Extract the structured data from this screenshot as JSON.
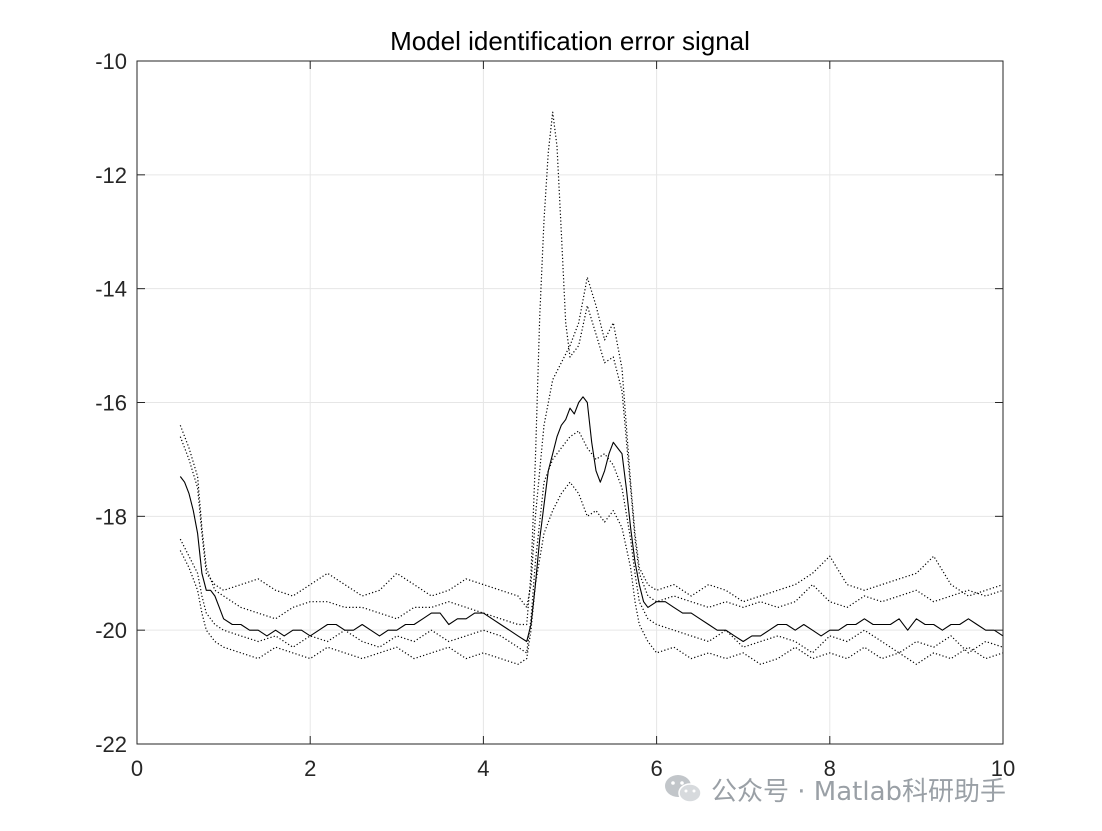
{
  "chart_data": {
    "type": "line",
    "title": "Model identification error signal",
    "xlabel": "",
    "ylabel": "",
    "xlim": [
      0,
      10
    ],
    "ylim": [
      -22,
      -10
    ],
    "xticks": [
      "0",
      "2",
      "4",
      "6",
      "8",
      "10"
    ],
    "yticks": [
      "-10",
      "-12",
      "-14",
      "-16",
      "-18",
      "-20",
      "-22"
    ],
    "grid": true,
    "series": [
      {
        "style": "solid",
        "color": "#000000",
        "x": [
          0.5,
          0.55,
          0.6,
          0.65,
          0.7,
          0.75,
          0.8,
          0.85,
          0.9,
          0.95,
          1.0,
          1.1,
          1.2,
          1.3,
          1.4,
          1.5,
          1.6,
          1.7,
          1.8,
          1.9,
          2.0,
          2.1,
          2.2,
          2.3,
          2.4,
          2.5,
          2.6,
          2.7,
          2.8,
          2.9,
          3.0,
          3.1,
          3.2,
          3.3,
          3.4,
          3.5,
          3.6,
          3.7,
          3.8,
          3.9,
          4.0,
          4.1,
          4.2,
          4.3,
          4.4,
          4.5,
          4.55,
          4.6,
          4.65,
          4.7,
          4.75,
          4.8,
          4.85,
          4.9,
          4.95,
          5.0,
          5.05,
          5.1,
          5.15,
          5.2,
          5.25,
          5.3,
          5.35,
          5.4,
          5.45,
          5.5,
          5.55,
          5.6,
          5.65,
          5.7,
          5.75,
          5.8,
          5.85,
          5.9,
          6.0,
          6.1,
          6.2,
          6.3,
          6.4,
          6.5,
          6.6,
          6.7,
          6.8,
          6.9,
          7.0,
          7.1,
          7.2,
          7.3,
          7.4,
          7.5,
          7.6,
          7.7,
          7.8,
          7.9,
          8.0,
          8.1,
          8.2,
          8.3,
          8.4,
          8.5,
          8.6,
          8.7,
          8.8,
          8.9,
          9.0,
          9.1,
          9.2,
          9.3,
          9.4,
          9.5,
          9.6,
          9.7,
          9.8,
          9.9,
          10.0
        ],
        "y": [
          -17.3,
          -17.4,
          -17.6,
          -17.9,
          -18.3,
          -19.0,
          -19.3,
          -19.3,
          -19.4,
          -19.6,
          -19.8,
          -19.9,
          -19.9,
          -20.0,
          -20.0,
          -20.1,
          -20.0,
          -20.1,
          -20.0,
          -20.0,
          -20.1,
          -20.0,
          -19.9,
          -19.9,
          -20.0,
          -20.0,
          -19.9,
          -20.0,
          -20.1,
          -20.0,
          -20.0,
          -19.9,
          -19.9,
          -19.8,
          -19.7,
          -19.7,
          -19.9,
          -19.8,
          -19.8,
          -19.7,
          -19.7,
          -19.8,
          -19.9,
          -20.0,
          -20.1,
          -20.2,
          -19.9,
          -19.2,
          -18.4,
          -17.8,
          -17.2,
          -16.9,
          -16.6,
          -16.4,
          -16.3,
          -16.1,
          -16.2,
          -16.0,
          -15.9,
          -16.0,
          -16.7,
          -17.2,
          -17.4,
          -17.2,
          -16.9,
          -16.7,
          -16.8,
          -16.9,
          -17.5,
          -18.2,
          -18.8,
          -19.2,
          -19.5,
          -19.6,
          -19.5,
          -19.5,
          -19.6,
          -19.7,
          -19.7,
          -19.8,
          -19.9,
          -20.0,
          -20.0,
          -20.1,
          -20.2,
          -20.1,
          -20.1,
          -20.0,
          -19.9,
          -19.9,
          -20.0,
          -19.9,
          -20.0,
          -20.1,
          -20.0,
          -20.0,
          -19.9,
          -19.9,
          -19.8,
          -19.9,
          -19.9,
          -19.9,
          -19.8,
          -20.0,
          -19.8,
          -19.9,
          -19.9,
          -20.0,
          -19.9,
          -19.9,
          -19.8,
          -19.9,
          -20.0,
          -20.0,
          -20.1
        ]
      },
      {
        "style": "dotted",
        "color": "#000000",
        "x": [
          0.5,
          0.6,
          0.7,
          0.75,
          0.8,
          0.9,
          1.0,
          1.2,
          1.4,
          1.6,
          1.8,
          2.0,
          2.2,
          2.4,
          2.6,
          2.8,
          3.0,
          3.2,
          3.4,
          3.6,
          3.8,
          4.0,
          4.2,
          4.4,
          4.5,
          4.55,
          4.6,
          4.65,
          4.7,
          4.75,
          4.8,
          4.85,
          4.9,
          4.95,
          5.0,
          5.1,
          5.2,
          5.3,
          5.4,
          5.5,
          5.6,
          5.7,
          5.75,
          5.8,
          5.9,
          6.0,
          6.2,
          6.4,
          6.6,
          6.8,
          7.0,
          7.2,
          7.4,
          7.6,
          7.8,
          8.0,
          8.2,
          8.4,
          8.6,
          8.8,
          9.0,
          9.2,
          9.4,
          9.6,
          9.8,
          10.0
        ],
        "y": [
          -16.4,
          -16.8,
          -17.3,
          -18.2,
          -18.9,
          -19.3,
          -19.4,
          -19.6,
          -19.7,
          -19.8,
          -19.6,
          -19.5,
          -19.5,
          -19.6,
          -19.6,
          -19.7,
          -19.8,
          -19.6,
          -19.6,
          -19.5,
          -19.6,
          -19.7,
          -19.8,
          -19.9,
          -19.9,
          -19.0,
          -17.0,
          -14.5,
          -12.8,
          -11.6,
          -10.9,
          -11.5,
          -13.0,
          -14.6,
          -15.2,
          -15.0,
          -14.3,
          -14.8,
          -15.3,
          -15.2,
          -15.8,
          -17.5,
          -18.4,
          -19.0,
          -19.4,
          -19.5,
          -19.4,
          -19.5,
          -19.6,
          -19.5,
          -19.6,
          -19.5,
          -19.6,
          -19.5,
          -19.2,
          -19.5,
          -19.6,
          -19.4,
          -19.5,
          -19.4,
          -19.3,
          -19.5,
          -19.4,
          -19.3,
          -19.4,
          -19.3
        ]
      },
      {
        "style": "dotted",
        "color": "#000000",
        "x": [
          0.5,
          0.6,
          0.7,
          0.75,
          0.8,
          0.9,
          1.0,
          1.2,
          1.4,
          1.6,
          1.8,
          2.0,
          2.2,
          2.4,
          2.6,
          2.8,
          3.0,
          3.2,
          3.4,
          3.6,
          3.8,
          4.0,
          4.2,
          4.4,
          4.5,
          4.55,
          4.6,
          4.7,
          4.8,
          4.9,
          5.0,
          5.1,
          5.2,
          5.3,
          5.4,
          5.5,
          5.6,
          5.7,
          5.75,
          5.8,
          5.9,
          6.0,
          6.2,
          6.4,
          6.6,
          6.8,
          7.0,
          7.2,
          7.4,
          7.6,
          7.8,
          8.0,
          8.2,
          8.4,
          8.6,
          8.8,
          9.0,
          9.2,
          9.4,
          9.6,
          9.8,
          10.0
        ],
        "y": [
          -16.6,
          -17.0,
          -17.5,
          -18.3,
          -19.0,
          -19.2,
          -19.3,
          -19.2,
          -19.1,
          -19.3,
          -19.4,
          -19.2,
          -19.0,
          -19.2,
          -19.4,
          -19.3,
          -19.0,
          -19.2,
          -19.4,
          -19.3,
          -19.1,
          -19.2,
          -19.3,
          -19.4,
          -19.6,
          -19.2,
          -18.0,
          -16.4,
          -15.6,
          -15.3,
          -15.0,
          -14.6,
          -13.8,
          -14.3,
          -14.9,
          -14.6,
          -15.4,
          -17.4,
          -18.3,
          -18.9,
          -19.2,
          -19.3,
          -19.2,
          -19.4,
          -19.2,
          -19.3,
          -19.5,
          -19.4,
          -19.3,
          -19.2,
          -19.0,
          -18.7,
          -19.2,
          -19.3,
          -19.2,
          -19.1,
          -19.0,
          -18.7,
          -19.2,
          -19.4,
          -19.3,
          -19.2
        ]
      },
      {
        "style": "dotted",
        "color": "#000000",
        "x": [
          0.5,
          0.6,
          0.7,
          0.75,
          0.8,
          0.9,
          1.0,
          1.2,
          1.4,
          1.6,
          1.8,
          2.0,
          2.2,
          2.4,
          2.6,
          2.8,
          3.0,
          3.2,
          3.4,
          3.6,
          3.8,
          4.0,
          4.2,
          4.4,
          4.5,
          4.55,
          4.6,
          4.7,
          4.8,
          4.9,
          5.0,
          5.1,
          5.2,
          5.3,
          5.4,
          5.5,
          5.6,
          5.7,
          5.75,
          5.8,
          5.9,
          6.0,
          6.2,
          6.4,
          6.6,
          6.8,
          7.0,
          7.2,
          7.4,
          7.6,
          7.8,
          8.0,
          8.2,
          8.4,
          8.6,
          8.8,
          9.0,
          9.2,
          9.4,
          9.6,
          9.8,
          10.0
        ],
        "y": [
          -18.4,
          -18.7,
          -19.0,
          -19.4,
          -19.7,
          -19.9,
          -20.0,
          -20.1,
          -20.2,
          -20.1,
          -20.3,
          -20.1,
          -20.2,
          -20.0,
          -20.2,
          -20.3,
          -20.1,
          -20.2,
          -20.0,
          -20.2,
          -20.1,
          -20.0,
          -20.1,
          -20.3,
          -20.4,
          -19.8,
          -18.8,
          -17.4,
          -17.0,
          -16.8,
          -16.6,
          -16.5,
          -16.8,
          -17.0,
          -16.9,
          -17.1,
          -17.5,
          -18.4,
          -19.0,
          -19.5,
          -19.8,
          -19.9,
          -20.0,
          -20.1,
          -20.2,
          -20.0,
          -20.3,
          -20.2,
          -20.1,
          -20.2,
          -20.4,
          -20.1,
          -20.2,
          -20.0,
          -20.2,
          -20.4,
          -20.2,
          -20.3,
          -20.1,
          -20.4,
          -20.2,
          -20.3
        ]
      },
      {
        "style": "dotted",
        "color": "#000000",
        "x": [
          0.5,
          0.6,
          0.7,
          0.75,
          0.8,
          0.9,
          1.0,
          1.2,
          1.4,
          1.6,
          1.8,
          2.0,
          2.2,
          2.4,
          2.6,
          2.8,
          3.0,
          3.2,
          3.4,
          3.6,
          3.8,
          4.0,
          4.2,
          4.4,
          4.5,
          4.55,
          4.6,
          4.7,
          4.8,
          4.9,
          5.0,
          5.1,
          5.2,
          5.3,
          5.4,
          5.5,
          5.6,
          5.7,
          5.75,
          5.8,
          5.9,
          6.0,
          6.2,
          6.4,
          6.6,
          6.8,
          7.0,
          7.2,
          7.4,
          7.6,
          7.8,
          8.0,
          8.2,
          8.4,
          8.6,
          8.8,
          9.0,
          9.2,
          9.4,
          9.6,
          9.8,
          10.0
        ],
        "y": [
          -18.6,
          -18.9,
          -19.3,
          -19.7,
          -20.0,
          -20.2,
          -20.3,
          -20.4,
          -20.5,
          -20.3,
          -20.4,
          -20.5,
          -20.3,
          -20.4,
          -20.5,
          -20.4,
          -20.3,
          -20.5,
          -20.4,
          -20.3,
          -20.5,
          -20.4,
          -20.5,
          -20.6,
          -20.5,
          -20.0,
          -19.2,
          -18.3,
          -17.9,
          -17.6,
          -17.4,
          -17.6,
          -18.0,
          -17.9,
          -18.1,
          -17.9,
          -18.2,
          -18.9,
          -19.5,
          -19.9,
          -20.2,
          -20.4,
          -20.3,
          -20.5,
          -20.4,
          -20.5,
          -20.4,
          -20.6,
          -20.5,
          -20.3,
          -20.5,
          -20.4,
          -20.5,
          -20.3,
          -20.5,
          -20.4,
          -20.6,
          -20.4,
          -20.5,
          -20.3,
          -20.5,
          -20.4
        ]
      }
    ]
  },
  "watermark": {
    "text": "公众号 · Matlab科研助手",
    "icon": "wechat-icon",
    "color": "#9aa0a6"
  }
}
